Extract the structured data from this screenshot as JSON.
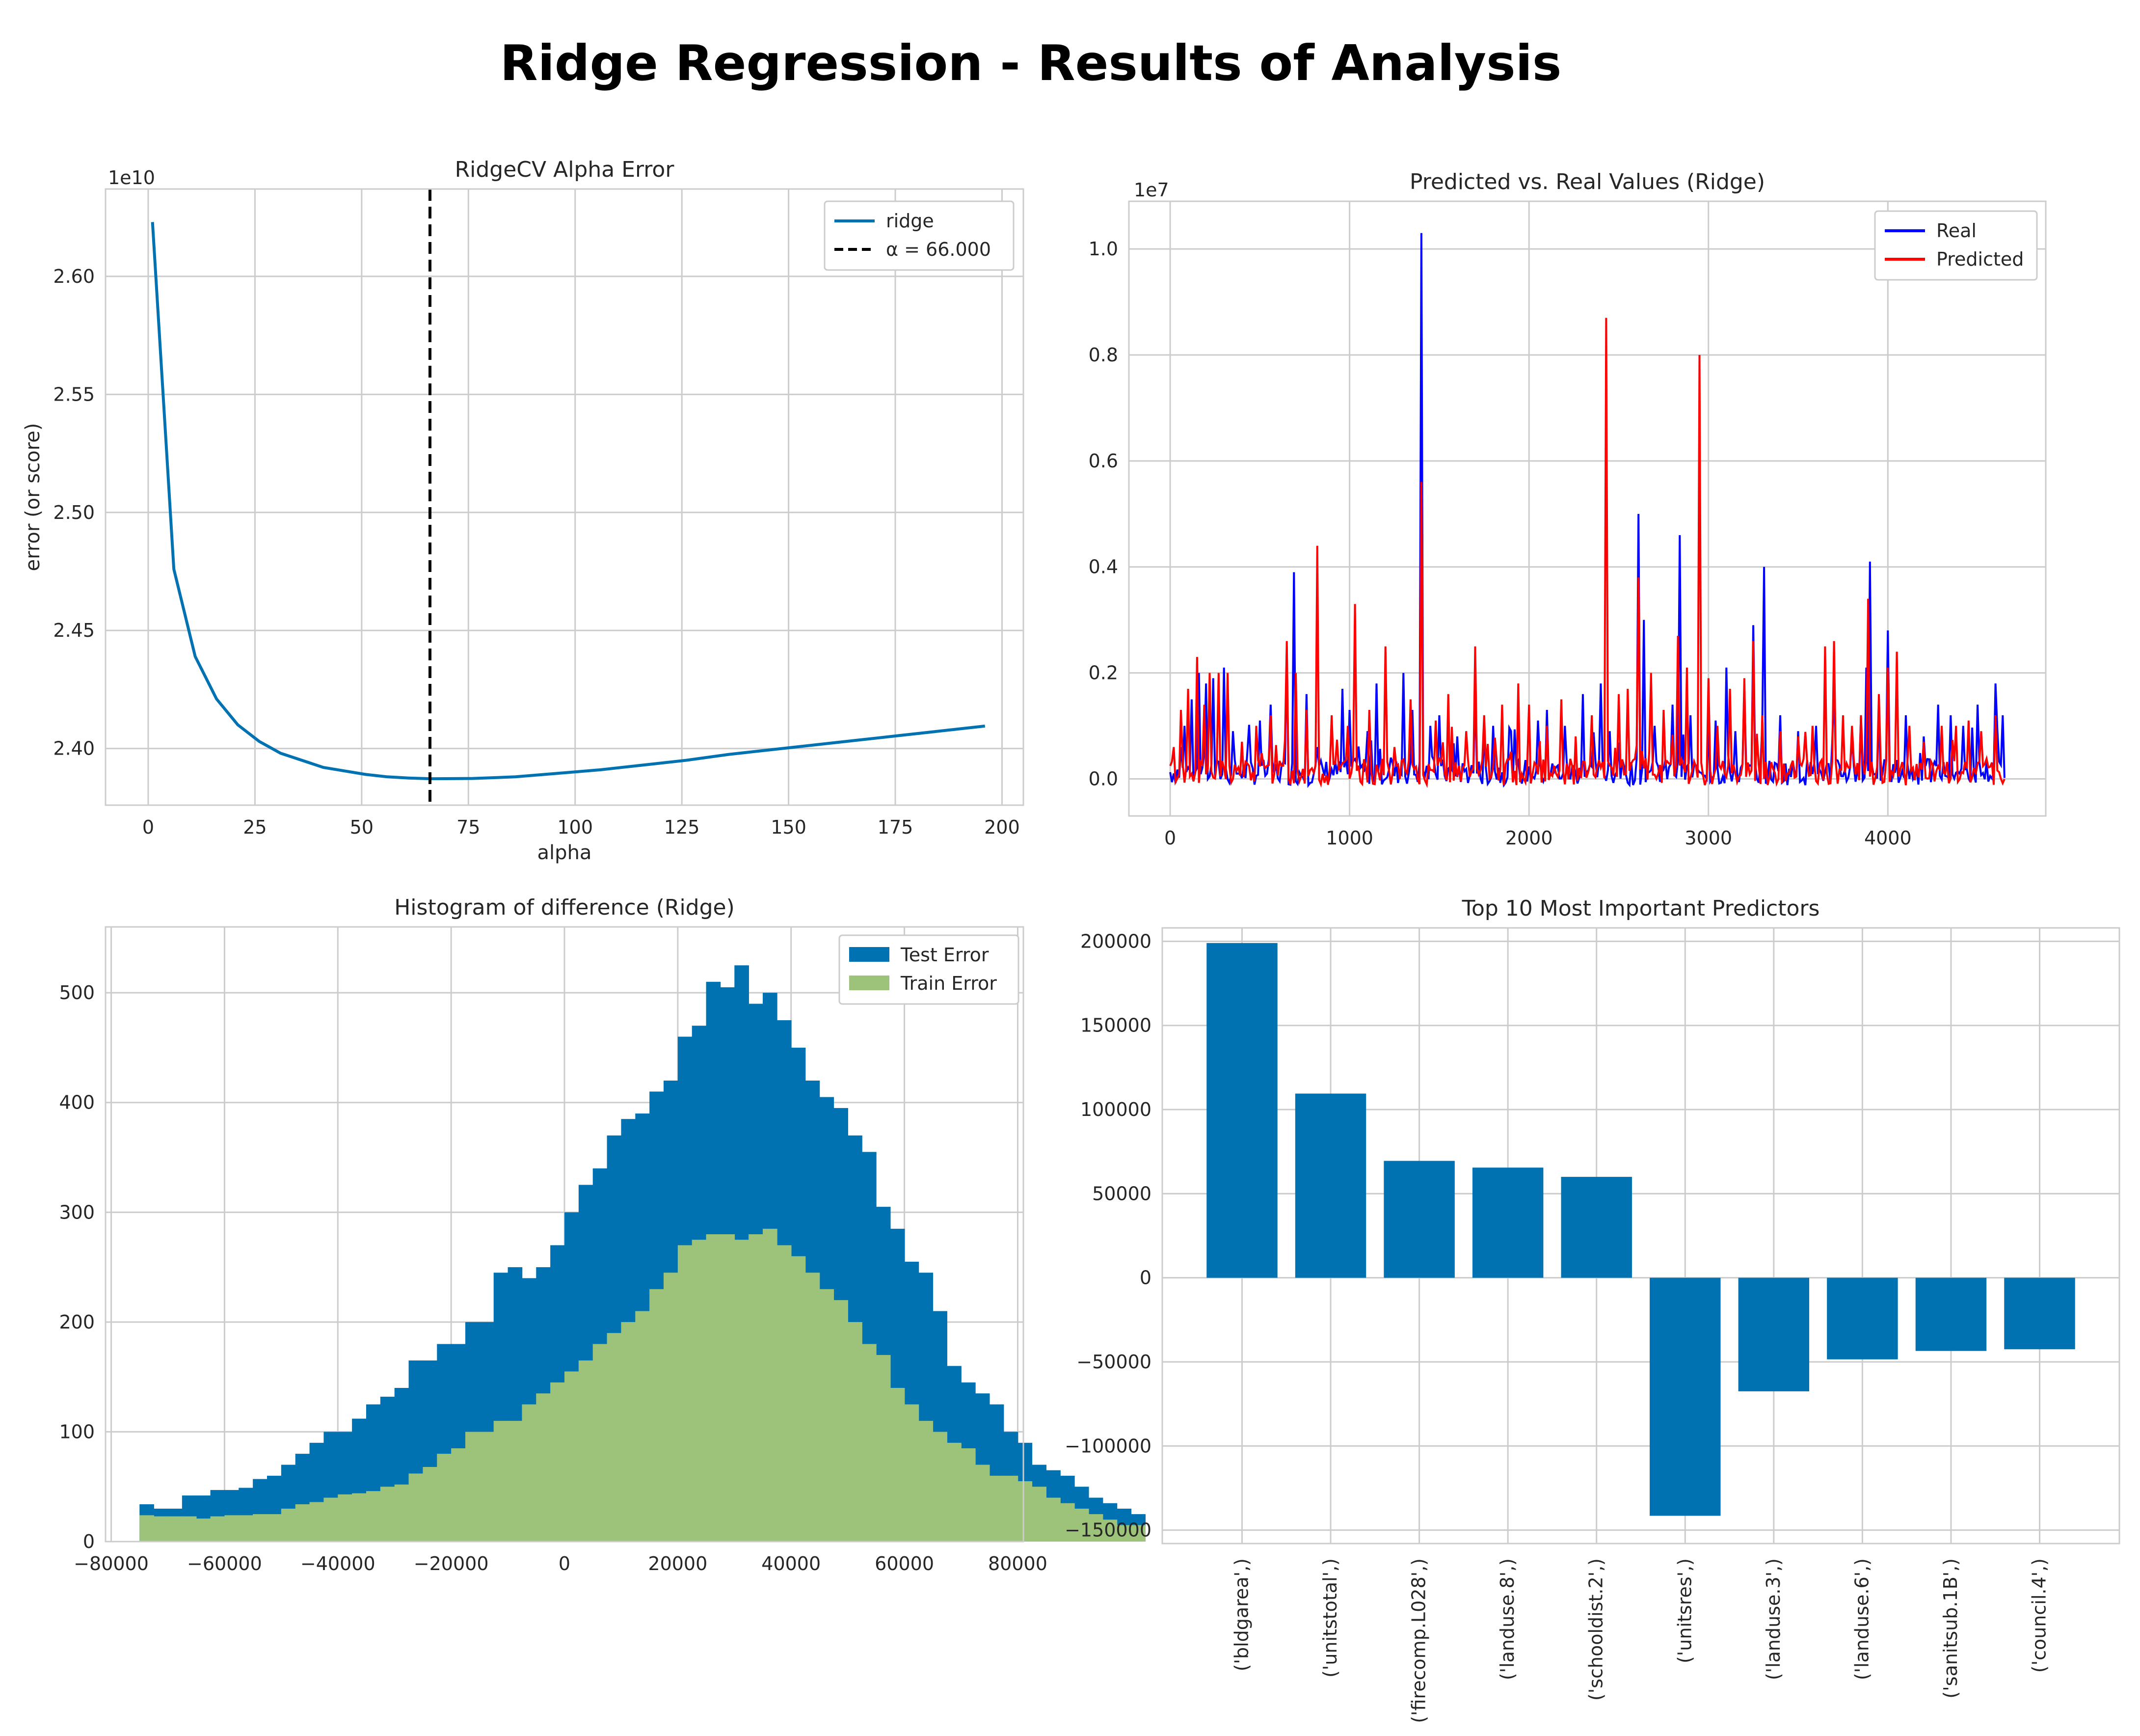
{
  "figure": {
    "title": "Ridge Regression - Results of Analysis"
  },
  "colors": {
    "blue": "#0072B2",
    "green": "#9DC37A",
    "real": "#0000ff",
    "predicted": "#ff0000",
    "black": "#000000"
  },
  "chart_data": [
    {
      "type": "line",
      "title": "RidgeCV Alpha Error",
      "xlabel": "alpha",
      "ylabel": "error (or score)",
      "y_offset_label": "1e10",
      "xlim": [
        -10,
        205
      ],
      "ylim": [
        2.376,
        2.637
      ],
      "xticks": [
        0,
        25,
        50,
        75,
        100,
        125,
        150,
        175,
        200
      ],
      "yticks": [
        2.4,
        2.45,
        2.5,
        2.55,
        2.6
      ],
      "ytick_labels": [
        "2.40",
        "2.45",
        "2.50",
        "2.55",
        "2.60"
      ],
      "series": [
        {
          "name": "ridge",
          "x": [
            1,
            6,
            11,
            16,
            21,
            26,
            31,
            36,
            41,
            46,
            51,
            56,
            61,
            66,
            76,
            86,
            96,
            106,
            116,
            126,
            136,
            146,
            156,
            166,
            176,
            186,
            196
          ],
          "y": [
            2.623,
            2.476,
            2.439,
            2.421,
            2.41,
            2.403,
            2.398,
            2.395,
            2.392,
            2.3905,
            2.389,
            2.388,
            2.3875,
            2.3872,
            2.3873,
            2.388,
            2.3895,
            2.391,
            2.393,
            2.395,
            2.3975,
            2.3995,
            2.4015,
            2.4035,
            2.4055,
            2.4075,
            2.4095
          ]
        }
      ],
      "vline": {
        "x": 66,
        "name": "α = 66.000"
      },
      "legend": {
        "placement": "upper right",
        "entries": [
          "ridge",
          "α = 66.000"
        ]
      }
    },
    {
      "type": "line",
      "title": "Predicted vs. Real Values (Ridge)",
      "y_offset_label": "1e7",
      "xlim": [
        -230,
        4880
      ],
      "ylim": [
        -0.07,
        1.09
      ],
      "xticks": [
        0,
        1000,
        2000,
        3000,
        4000
      ],
      "yticks": [
        0.0,
        0.2,
        0.4,
        0.6,
        0.8,
        1.0
      ],
      "ytick_labels": [
        "0.0",
        "0.2",
        "0.4",
        "0.6",
        "0.8",
        "1.0"
      ],
      "n_points": 4650,
      "series": [
        {
          "name": "Real",
          "spikes": [
            [
              60,
              0.06
            ],
            [
              80,
              0.1
            ],
            [
              120,
              0.15
            ],
            [
              160,
              0.2
            ],
            [
              200,
              0.18
            ],
            [
              240,
              0.19
            ],
            [
              300,
              0.21
            ],
            [
              350,
              0.09
            ],
            [
              430,
              0.05
            ],
            [
              500,
              0.11
            ],
            [
              560,
              0.14
            ],
            [
              650,
              0.25
            ],
            [
              690,
              0.39
            ],
            [
              760,
              0.16
            ],
            [
              820,
              0.06
            ],
            [
              960,
              0.17
            ],
            [
              1000,
              0.13
            ],
            [
              1100,
              0.09
            ],
            [
              1150,
              0.18
            ],
            [
              1230,
              0.04
            ],
            [
              1300,
              0.2
            ],
            [
              1350,
              0.13
            ],
            [
              1400,
              1.03
            ],
            [
              1450,
              0.1
            ],
            [
              1500,
              0.12
            ],
            [
              1600,
              0.08
            ],
            [
              1700,
              0.17
            ],
            [
              1800,
              0.1
            ],
            [
              1900,
              0.09
            ],
            [
              2050,
              0.11
            ],
            [
              2100,
              0.13
            ],
            [
              2200,
              0.1
            ],
            [
              2300,
              0.16
            ],
            [
              2400,
              0.18
            ],
            [
              2450,
              0.09
            ],
            [
              2610,
              0.5
            ],
            [
              2640,
              0.3
            ],
            [
              2700,
              0.1
            ],
            [
              2800,
              0.14
            ],
            [
              2840,
              0.46
            ],
            [
              2900,
              0.12
            ],
            [
              3000,
              0.1
            ],
            [
              3040,
              0.11
            ],
            [
              3100,
              0.21
            ],
            [
              3150,
              0.09
            ],
            [
              3200,
              0.17
            ],
            [
              3250,
              0.29
            ],
            [
              3300,
              0.1
            ],
            [
              3310,
              0.4
            ],
            [
              3400,
              0.12
            ],
            [
              3500,
              0.09
            ],
            [
              3600,
              0.1
            ],
            [
              3700,
              0.17
            ],
            [
              3800,
              0.08
            ],
            [
              3850,
              0.12
            ],
            [
              3880,
              0.21
            ],
            [
              3900,
              0.41
            ],
            [
              3950,
              0.14
            ],
            [
              4000,
              0.28
            ],
            [
              4100,
              0.12
            ],
            [
              4200,
              0.08
            ],
            [
              4280,
              0.14
            ],
            [
              4350,
              0.12
            ],
            [
              4420,
              0.1
            ],
            [
              4500,
              0.14
            ],
            [
              4600,
              0.18
            ],
            [
              4640,
              0.12
            ]
          ]
        },
        {
          "name": "Predicted",
          "spikes": [
            [
              20,
              0.06
            ],
            [
              60,
              0.13
            ],
            [
              100,
              0.17
            ],
            [
              150,
              0.23
            ],
            [
              190,
              0.14
            ],
            [
              220,
              0.2
            ],
            [
              270,
              0.2
            ],
            [
              320,
              0.2
            ],
            [
              400,
              0.07
            ],
            [
              480,
              0.1
            ],
            [
              560,
              0.12
            ],
            [
              650,
              0.26
            ],
            [
              700,
              0.2
            ],
            [
              760,
              0.13
            ],
            [
              820,
              0.44
            ],
            [
              900,
              0.12
            ],
            [
              990,
              0.1
            ],
            [
              1030,
              0.33
            ],
            [
              1110,
              0.13
            ],
            [
              1200,
              0.25
            ],
            [
              1250,
              0.06
            ],
            [
              1340,
              0.15
            ],
            [
              1400,
              0.56
            ],
            [
              1480,
              0.11
            ],
            [
              1550,
              0.16
            ],
            [
              1650,
              0.09
            ],
            [
              1700,
              0.25
            ],
            [
              1750,
              0.12
            ],
            [
              1850,
              0.14
            ],
            [
              1940,
              0.18
            ],
            [
              2000,
              0.14
            ],
            [
              2100,
              0.1
            ],
            [
              2180,
              0.15
            ],
            [
              2260,
              0.08
            ],
            [
              2350,
              0.12
            ],
            [
              2430,
              0.87
            ],
            [
              2500,
              0.16
            ],
            [
              2550,
              0.17
            ],
            [
              2610,
              0.38
            ],
            [
              2680,
              0.2
            ],
            [
              2750,
              0.13
            ],
            [
              2830,
              0.27
            ],
            [
              2880,
              0.21
            ],
            [
              2950,
              0.8
            ],
            [
              3000,
              0.19
            ],
            [
              3050,
              0.1
            ],
            [
              3120,
              0.17
            ],
            [
              3200,
              0.19
            ],
            [
              3250,
              0.26
            ],
            [
              3300,
              0.12
            ],
            [
              3400,
              0.09
            ],
            [
              3500,
              0.08
            ],
            [
              3580,
              0.1
            ],
            [
              3650,
              0.25
            ],
            [
              3700,
              0.26
            ],
            [
              3750,
              0.12
            ],
            [
              3800,
              0.1
            ],
            [
              3850,
              0.12
            ],
            [
              3890,
              0.34
            ],
            [
              3950,
              0.16
            ],
            [
              4000,
              0.21
            ],
            [
              4050,
              0.24
            ],
            [
              4120,
              0.1
            ],
            [
              4200,
              0.07
            ],
            [
              4300,
              0.1
            ],
            [
              4380,
              0.1
            ],
            [
              4450,
              0.11
            ],
            [
              4520,
              0.09
            ],
            [
              4600,
              0.12
            ]
          ]
        }
      ],
      "legend": {
        "placement": "upper right",
        "entries": [
          "Real",
          "Predicted"
        ]
      }
    },
    {
      "type": "bar",
      "title": "Histogram of difference (Ridge)",
      "xlim": [
        -81000,
        81000
      ],
      "ylim": [
        0,
        560
      ],
      "xticks": [
        -80000,
        -60000,
        -40000,
        -20000,
        0,
        20000,
        40000,
        60000,
        80000
      ],
      "xtick_labels": [
        "−80000",
        "−60000",
        "−40000",
        "−20000",
        "0",
        "20000",
        "40000",
        "60000",
        "80000"
      ],
      "yticks": [
        0,
        100,
        200,
        300,
        400,
        500
      ],
      "bin_start": -75000,
      "bin_width": 2500,
      "series": [
        {
          "name": "Test Error",
          "values": [
            34,
            30,
            30,
            42,
            42,
            47,
            47,
            49,
            57,
            60,
            70,
            80,
            90,
            100,
            100,
            112,
            125,
            132,
            140,
            165,
            165,
            180,
            180,
            200,
            200,
            245,
            250,
            240,
            250,
            270,
            300,
            325,
            340,
            370,
            385,
            390,
            410,
            420,
            460,
            470,
            510,
            505,
            525,
            490,
            500,
            475,
            450,
            420,
            405,
            395,
            370,
            355,
            305,
            285,
            255,
            245,
            210,
            160,
            145,
            135,
            125,
            100,
            90,
            70,
            65,
            60,
            50,
            40,
            35,
            30,
            25
          ],
          "values_note": ""
        },
        {
          "name": "Train Error",
          "values": [
            24,
            23,
            23,
            23,
            21,
            23,
            24,
            24,
            25,
            25,
            30,
            34,
            36,
            40,
            43,
            44,
            46,
            50,
            52,
            62,
            68,
            80,
            85,
            100,
            100,
            110,
            110,
            125,
            135,
            145,
            155,
            165,
            180,
            190,
            200,
            210,
            230,
            245,
            270,
            275,
            280,
            280,
            275,
            280,
            285,
            270,
            260,
            245,
            230,
            220,
            200,
            180,
            170,
            140,
            125,
            110,
            100,
            90,
            85,
            70,
            60,
            60,
            55,
            50,
            40,
            35,
            30,
            25,
            20,
            15,
            15
          ]
        }
      ],
      "legend": {
        "placement": "upper right",
        "entries": [
          "Test Error",
          "Train Error"
        ]
      }
    },
    {
      "type": "bar",
      "title": "Top 10 Most Important Predictors",
      "categories": [
        "('bldgarea',)",
        "('unitstotal',)",
        "('firecomp.L028',)",
        "('landuse.8',)",
        "('schooldist.2',)",
        "('unitsres',)",
        "('landuse.3',)",
        "('landuse.6',)",
        "('sanitsub.1B',)",
        "('council.4',)"
      ],
      "values": [
        199000,
        109500,
        69500,
        65500,
        60000,
        -141500,
        -67500,
        -48500,
        -43500,
        -42500
      ],
      "ylim": [
        -158000,
        208000
      ],
      "yticks": [
        -150000,
        -100000,
        -50000,
        0,
        50000,
        100000,
        150000,
        200000
      ],
      "ytick_labels": [
        "−150000",
        "−100000",
        "−50000",
        "0",
        "50000",
        "100000",
        "150000",
        "200000"
      ]
    }
  ]
}
